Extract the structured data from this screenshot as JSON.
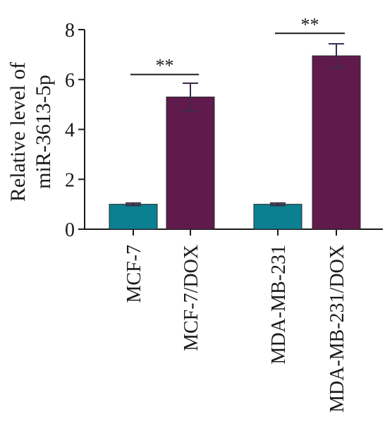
{
  "chart_data": {
    "type": "bar",
    "categories": [
      "MCF-7",
      "MCF-7/DOX",
      "MDA-MB-231",
      "MDA-MB-231/DOX"
    ],
    "values": [
      1.0,
      5.3,
      1.0,
      6.95
    ],
    "errors": [
      0.05,
      0.55,
      0.05,
      0.48
    ],
    "bar_colors": [
      "#0a8090",
      "#611a4c",
      "#0a8090",
      "#611a4c"
    ],
    "ylabel_lines": [
      "Relative level of",
      "miR-3613-5p"
    ],
    "ylim": [
      0,
      8
    ],
    "yticks": [
      0,
      2,
      4,
      6,
      8
    ],
    "significance": [
      {
        "from": 0,
        "to": 1,
        "label": "**",
        "y": 6.2
      },
      {
        "from": 2,
        "to": 3,
        "label": "**",
        "y": 7.85
      }
    ],
    "grid": false,
    "legend": "none"
  }
}
